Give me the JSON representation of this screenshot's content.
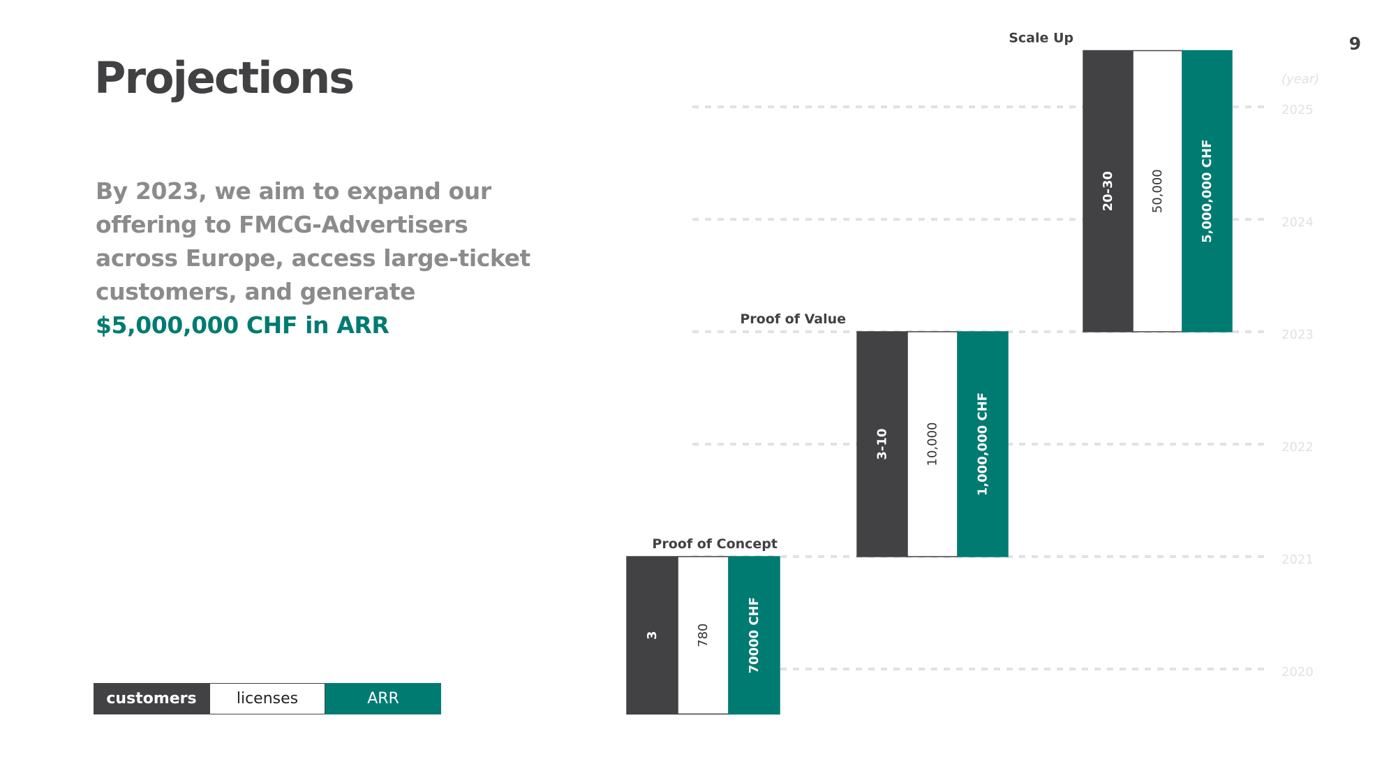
{
  "page_number": "9",
  "title": "Projections",
  "description": "By 2023, we aim to expand our offering to FMCG-Advertisers across Europe, access large-ticket customers, and generate",
  "highlight": "$5,000,000 CHF in ARR",
  "legend": {
    "customers": "customers",
    "licenses": "licenses",
    "arr": "ARR"
  },
  "colors": {
    "customers": "#424244",
    "licenses": "#ffffff",
    "arr": "#007b72",
    "text_dark": "#414143",
    "text_gray": "#8b8b8b",
    "gridline": "#e1e1e1"
  },
  "chart_data": {
    "type": "bar",
    "ylabel": "(year)",
    "y_ticks": [
      "2020",
      "2021",
      "2022",
      "2023",
      "2024",
      "2025"
    ],
    "ylim": [
      2019.6,
      2025.5
    ],
    "grid": "dashed horizontal",
    "stages": [
      {
        "name": "Proof of Concept",
        "range": [
          2019.6,
          2021
        ],
        "customers": "3",
        "licenses": "780",
        "arr": "70000 CHF"
      },
      {
        "name": "Proof of Value",
        "range": [
          2021,
          2023
        ],
        "customers": "3-10",
        "licenses": "10,000",
        "arr": "1,000,000 CHF"
      },
      {
        "name": "Scale Up",
        "range": [
          2023,
          2025.5
        ],
        "customers": "20-30",
        "licenses": "50,000",
        "arr": "5,000,000 CHF"
      }
    ]
  }
}
